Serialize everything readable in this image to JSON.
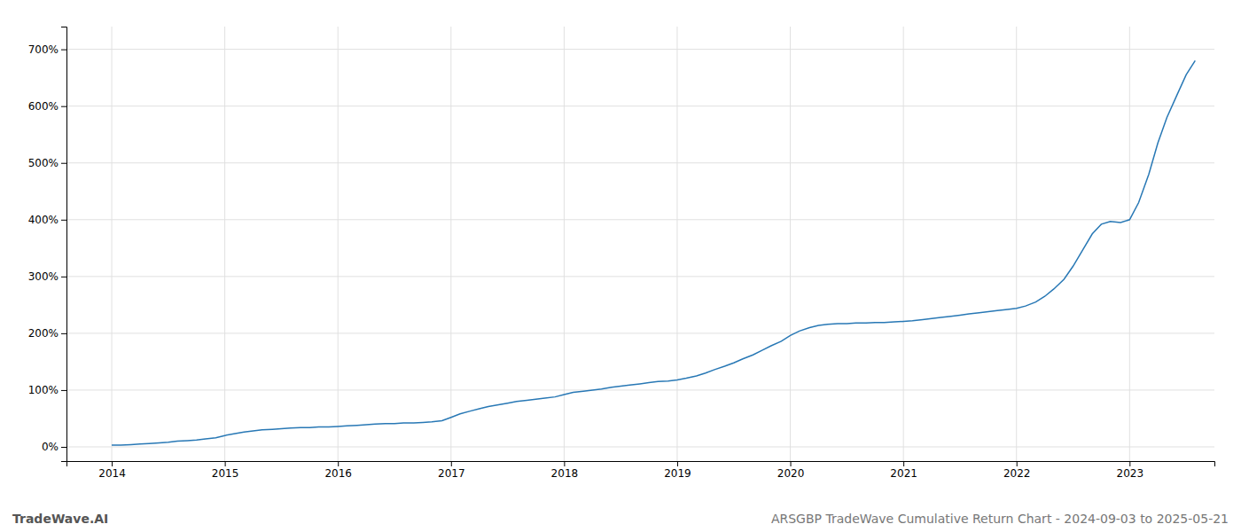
{
  "chart_data": {
    "type": "line",
    "title": "ARSGBP TradeWave Cumulative Return Chart - 2024-09-03 to 2025-05-21",
    "annotations": [
      {
        "text": "TradeWave.AI"
      }
    ],
    "grid": true,
    "xlim": [
      2013.6,
      2023.75
    ],
    "xticks": [
      2014,
      2015,
      2016,
      2017,
      2018,
      2019,
      2020,
      2021,
      2022,
      2023
    ],
    "ylim": [
      -25,
      740
    ],
    "yticks": [
      {
        "value": 0,
        "label": "0%"
      },
      {
        "value": 100,
        "label": "100%"
      },
      {
        "value": 200,
        "label": "200%"
      },
      {
        "value": 300,
        "label": "300%"
      },
      {
        "value": 400,
        "label": "400%"
      },
      {
        "value": 500,
        "label": "500%"
      },
      {
        "value": 600,
        "label": "600%"
      },
      {
        "value": 700,
        "label": "700%"
      }
    ],
    "x": [
      2014.0,
      2014.08,
      2014.17,
      2014.25,
      2014.33,
      2014.42,
      2014.5,
      2014.58,
      2014.67,
      2014.75,
      2014.83,
      2014.92,
      2015.0,
      2015.08,
      2015.17,
      2015.25,
      2015.33,
      2015.42,
      2015.5,
      2015.58,
      2015.67,
      2015.75,
      2015.83,
      2015.92,
      2016.0,
      2016.08,
      2016.17,
      2016.25,
      2016.33,
      2016.42,
      2016.5,
      2016.58,
      2016.67,
      2016.75,
      2016.83,
      2016.92,
      2017.0,
      2017.08,
      2017.17,
      2017.25,
      2017.33,
      2017.42,
      2017.5,
      2017.58,
      2017.67,
      2017.75,
      2017.83,
      2017.92,
      2018.0,
      2018.08,
      2018.17,
      2018.25,
      2018.33,
      2018.42,
      2018.5,
      2018.58,
      2018.67,
      2018.75,
      2018.83,
      2018.92,
      2019.0,
      2019.08,
      2019.17,
      2019.25,
      2019.33,
      2019.42,
      2019.5,
      2019.58,
      2019.67,
      2019.75,
      2019.83,
      2019.92,
      2020.0,
      2020.08,
      2020.17,
      2020.25,
      2020.33,
      2020.42,
      2020.5,
      2020.58,
      2020.67,
      2020.75,
      2020.83,
      2020.92,
      2021.0,
      2021.08,
      2021.17,
      2021.25,
      2021.33,
      2021.42,
      2021.5,
      2021.58,
      2021.67,
      2021.75,
      2021.83,
      2021.92,
      2022.0,
      2022.08,
      2022.17,
      2022.25,
      2022.33,
      2022.42,
      2022.5,
      2022.58,
      2022.67,
      2022.75,
      2022.83,
      2022.92,
      2023.0,
      2023.08,
      2023.17,
      2023.25,
      2023.33,
      2023.42,
      2023.5,
      2023.58
    ],
    "series": [
      {
        "color": "#2878b5",
        "values": [
          3,
          3,
          4,
          5,
          6,
          7,
          8,
          10,
          11,
          12,
          14,
          16,
          20,
          23,
          26,
          28,
          30,
          31,
          32,
          33,
          34,
          34,
          35,
          35,
          36,
          37,
          38,
          39,
          40,
          41,
          41,
          42,
          42,
          43,
          44,
          46,
          52,
          58,
          63,
          67,
          71,
          74,
          77,
          80,
          82,
          84,
          86,
          88,
          92,
          96,
          98,
          100,
          102,
          105,
          107,
          109,
          111,
          113,
          115,
          116,
          118,
          121,
          125,
          130,
          136,
          142,
          148,
          155,
          162,
          170,
          178,
          186,
          196,
          204,
          210,
          214,
          216,
          217,
          217,
          218,
          218,
          219,
          219,
          220,
          221,
          222,
          224,
          226,
          228,
          230,
          232,
          234,
          236,
          238,
          240,
          242,
          244,
          248,
          255,
          265,
          278,
          295,
          318,
          345,
          375,
          392,
          397,
          395,
          400,
          430,
          480,
          535,
          580,
          620,
          655,
          680
        ]
      }
    ]
  }
}
